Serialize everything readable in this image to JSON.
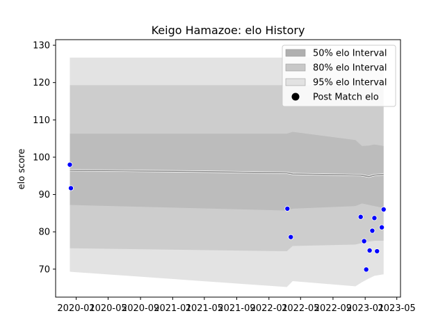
{
  "chart_data": {
    "type": "line",
    "title": "Keigo Hamazoe: elo History",
    "xlabel": "",
    "ylabel": "elo score",
    "xlim": [
      "2019-10-15",
      "2023-05-15"
    ],
    "ylim": [
      62.5,
      131.5
    ],
    "x_ticks": [
      "2020-01",
      "2020-05",
      "2020-09",
      "2021-01",
      "2021-05",
      "2021-09",
      "2022-01",
      "2022-05",
      "2022-09",
      "2023-01",
      "2023-05"
    ],
    "y_ticks": [
      70,
      80,
      90,
      100,
      110,
      120,
      130
    ],
    "grid": false,
    "legend_position": "top-right",
    "legend": [
      {
        "label": "50% elo Interval",
        "kind": "band",
        "color": "#b0b0b0"
      },
      {
        "label": "80% elo Interval",
        "kind": "band",
        "color": "#c8c8c8"
      },
      {
        "label": "95% elo Interval",
        "kind": "band",
        "color": "#e2e2e2"
      },
      {
        "label": "Post Match elo",
        "kind": "marker",
        "color": "#000000"
      }
    ],
    "bands": {
      "x": [
        "2019-12-08",
        "2022-03-10",
        "2022-04-01",
        "2022-11-25",
        "2022-12-20",
        "2023-01-15",
        "2023-02-05",
        "2023-03-12"
      ],
      "p95": {
        "low": [
          69.3,
          65.2,
          66.8,
          65.4,
          66.5,
          67.5,
          68.2,
          68.6
        ],
        "high": [
          126.7,
          126.7,
          126.7,
          126.7,
          126.7,
          126.7,
          126.7,
          126.7
        ]
      },
      "p80": {
        "low": [
          75.6,
          74.8,
          76.2,
          76.6,
          77.0,
          77.4,
          77.6,
          77.6
        ],
        "high": [
          119.3,
          119.3,
          119.3,
          119.3,
          119.3,
          119.3,
          119.3,
          119.3
        ]
      },
      "p50": {
        "low": [
          87.2,
          85.7,
          86.2,
          86.9,
          87.6,
          87.2,
          86.9,
          86.4
        ],
        "high": [
          106.3,
          106.3,
          106.8,
          104.6,
          103.0,
          103.1,
          103.4,
          103.0
        ]
      }
    },
    "series": [
      {
        "kind": "line",
        "color": "#888888",
        "x": [
          "2019-12-08",
          "2021-06-01",
          "2022-03-10",
          "2022-04-01",
          "2022-12-15",
          "2023-01-15",
          "2023-02-05",
          "2023-03-12"
        ],
        "values": [
          96.5,
          96.1,
          95.8,
          95.5,
          95.2,
          94.8,
          95.2,
          95.4
        ]
      },
      {
        "name": "Post Match elo",
        "kind": "scatter",
        "color": "#0000ff",
        "x": [
          "2019-12-08",
          "2019-12-12",
          "2022-03-12",
          "2022-03-25",
          "2022-12-15",
          "2022-12-28",
          "2023-01-05",
          "2023-01-18",
          "2023-01-28",
          "2023-02-05",
          "2023-02-15",
          "2023-03-05",
          "2023-03-12"
        ],
        "values": [
          98.0,
          91.7,
          86.2,
          78.6,
          84.0,
          77.5,
          69.9,
          75.0,
          80.3,
          83.7,
          74.8,
          81.2,
          86.0
        ]
      }
    ]
  }
}
